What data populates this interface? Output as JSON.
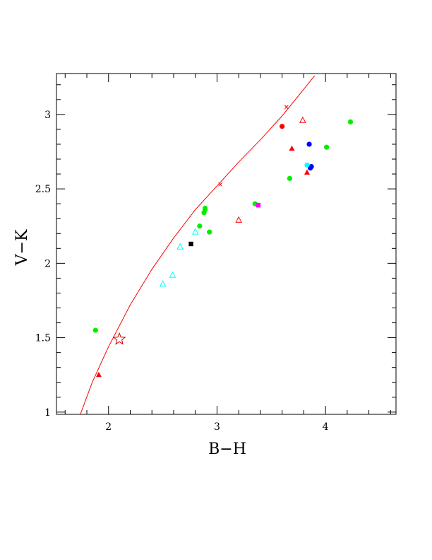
{
  "chart_data": {
    "type": "scatter",
    "xlabel": "B−H",
    "ylabel": "V−K",
    "xlim": [
      1.52,
      4.65
    ],
    "ylim": [
      0.985,
      3.275
    ],
    "x_ticks": [
      "2",
      "3",
      "4"
    ],
    "x_tick_values": [
      2,
      3,
      4
    ],
    "y_ticks": [
      "1",
      "1.5",
      "2",
      "2.5",
      "3"
    ],
    "y_tick_values": [
      1,
      1.5,
      2,
      2.5,
      3
    ],
    "grid": false,
    "colors": {
      "red": "#ff0000",
      "green": "#00ee00",
      "blue": "#0000ff",
      "cyan": "#00ffff",
      "black": "#000000",
      "magenta": "#ff00ff",
      "curve": "#ff0000",
      "star": "#cc0000"
    },
    "curve": {
      "x": [
        1.74,
        1.85,
        2.0,
        2.2,
        2.4,
        2.6,
        2.8,
        3.0,
        3.2,
        3.4,
        3.6,
        3.8,
        3.9
      ],
      "y": [
        0.985,
        1.2,
        1.44,
        1.72,
        1.96,
        2.17,
        2.36,
        2.52,
        2.68,
        2.83,
        2.99,
        3.17,
        3.26
      ]
    },
    "curve_marks": [
      {
        "x": 3.03,
        "y": 2.53
      },
      {
        "x": 3.64,
        "y": 3.05
      }
    ],
    "star": {
      "x": 2.1,
      "y": 1.49
    },
    "series": [
      {
        "marker": "circle",
        "color": "green",
        "x": [
          1.88,
          2.84,
          2.88,
          2.89,
          2.89,
          2.93,
          3.35,
          3.67,
          4.01,
          4.23
        ],
        "y": [
          1.55,
          2.25,
          2.34,
          2.36,
          2.37,
          2.21,
          2.4,
          2.57,
          2.78,
          2.95
        ]
      },
      {
        "marker": "circle",
        "color": "red",
        "x": [
          3.6
        ],
        "y": [
          2.92
        ]
      },
      {
        "marker": "circle",
        "color": "blue",
        "x": [
          3.85,
          3.86,
          3.87
        ],
        "y": [
          2.8,
          2.64,
          2.65
        ]
      },
      {
        "marker": "circle",
        "color": "cyan",
        "x": [
          3.83
        ],
        "y": [
          2.66
        ]
      },
      {
        "marker": "triangle-filled",
        "color": "red",
        "x": [
          1.91,
          3.69,
          3.83
        ],
        "y": [
          1.25,
          2.77,
          2.61
        ]
      },
      {
        "marker": "triangle-open",
        "color": "red",
        "x": [
          3.2,
          3.79
        ],
        "y": [
          2.29,
          2.96
        ]
      },
      {
        "marker": "triangle-open",
        "color": "cyan",
        "x": [
          2.5,
          2.59,
          2.66,
          2.8
        ],
        "y": [
          1.86,
          1.92,
          2.11,
          2.21
        ]
      },
      {
        "marker": "square",
        "color": "black",
        "x": [
          2.76
        ],
        "y": [
          2.13
        ]
      },
      {
        "marker": "square",
        "color": "magenta",
        "x": [
          3.38
        ],
        "y": [
          2.39
        ]
      }
    ]
  }
}
